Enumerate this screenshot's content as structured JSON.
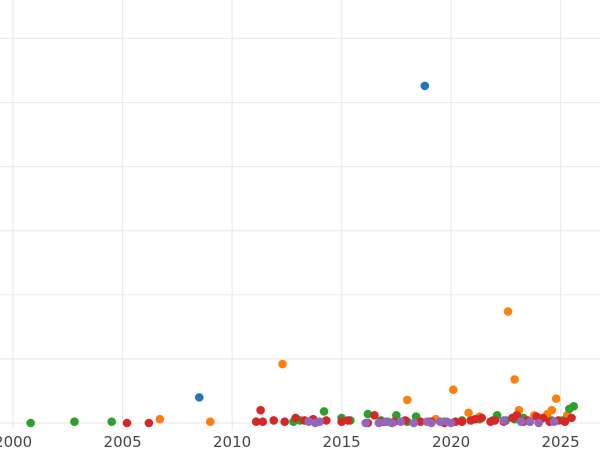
{
  "chart_data": {
    "type": "scatter",
    "title": "",
    "xlabel": "",
    "ylabel": "",
    "xlim": [
      1999.4,
      2026.8
    ],
    "ylim": [
      0,
      330
    ],
    "x_ticks": [
      2000,
      2005,
      2010,
      2015,
      2020,
      2025
    ],
    "x_tick_labels": [
      "2000",
      "2005",
      "2010",
      "2015",
      "2020",
      "2025"
    ],
    "y_gridlines": [
      0,
      50,
      100,
      150,
      200,
      250,
      300
    ],
    "grid": true,
    "legend": "none",
    "series": [
      {
        "color": "#1f77b4",
        "points": [
          [
            2008.5,
            20
          ],
          [
            2018.8,
            263
          ]
        ]
      },
      {
        "color": "#ff7f0e",
        "points": [
          [
            2006.7,
            3
          ],
          [
            2009.0,
            1
          ],
          [
            2012.3,
            46
          ],
          [
            2016.9,
            1
          ],
          [
            2018.0,
            18
          ],
          [
            2019.3,
            3
          ],
          [
            2020.1,
            26
          ],
          [
            2020.8,
            8
          ],
          [
            2021.3,
            5
          ],
          [
            2022.6,
            87
          ],
          [
            2022.9,
            34
          ],
          [
            2023.1,
            10
          ],
          [
            2023.8,
            6
          ],
          [
            2024.4,
            7
          ],
          [
            2024.6,
            10
          ],
          [
            2024.8,
            19
          ],
          [
            2025.3,
            6
          ]
        ]
      },
      {
        "color": "#2ca02c",
        "points": [
          [
            2000.8,
            0
          ],
          [
            2002.8,
            1
          ],
          [
            2004.5,
            1
          ],
          [
            2012.8,
            1
          ],
          [
            2013.1,
            2
          ],
          [
            2014.2,
            9
          ],
          [
            2015.0,
            4
          ],
          [
            2015.4,
            2
          ],
          [
            2016.2,
            7
          ],
          [
            2016.8,
            2
          ],
          [
            2017.1,
            1
          ],
          [
            2017.5,
            6
          ],
          [
            2018.0,
            1
          ],
          [
            2018.4,
            5
          ],
          [
            2019.0,
            1
          ],
          [
            2019.7,
            1
          ],
          [
            2020.5,
            2
          ],
          [
            2021.3,
            3
          ],
          [
            2021.9,
            2
          ],
          [
            2022.1,
            6
          ],
          [
            2022.5,
            2
          ],
          [
            2022.9,
            3
          ],
          [
            2023.3,
            4
          ],
          [
            2023.6,
            1
          ],
          [
            2024.1,
            3
          ],
          [
            2024.6,
            2
          ],
          [
            2025.1,
            2
          ],
          [
            2025.4,
            11
          ],
          [
            2025.6,
            13
          ]
        ]
      },
      {
        "color": "#d62728",
        "points": [
          [
            2005.2,
            0
          ],
          [
            2006.2,
            0
          ],
          [
            2011.1,
            1
          ],
          [
            2011.3,
            10
          ],
          [
            2011.4,
            1
          ],
          [
            2011.9,
            2
          ],
          [
            2012.4,
            1
          ],
          [
            2012.9,
            4
          ],
          [
            2013.3,
            2
          ],
          [
            2013.7,
            3
          ],
          [
            2014.3,
            2
          ],
          [
            2015.0,
            1
          ],
          [
            2015.3,
            2
          ],
          [
            2016.2,
            0
          ],
          [
            2016.5,
            6
          ],
          [
            2016.9,
            1
          ],
          [
            2017.4,
            1
          ],
          [
            2017.9,
            2
          ],
          [
            2018.6,
            1
          ],
          [
            2019.1,
            1
          ],
          [
            2019.7,
            0
          ],
          [
            2020.2,
            1
          ],
          [
            2020.5,
            1
          ],
          [
            2020.9,
            2
          ],
          [
            2021.1,
            3
          ],
          [
            2021.4,
            4
          ],
          [
            2021.8,
            1
          ],
          [
            2022.0,
            2
          ],
          [
            2022.4,
            1
          ],
          [
            2022.8,
            4
          ],
          [
            2023.0,
            6
          ],
          [
            2023.3,
            1
          ],
          [
            2023.5,
            2
          ],
          [
            2023.9,
            5
          ],
          [
            2024.2,
            4
          ],
          [
            2024.5,
            1
          ],
          [
            2024.9,
            2
          ],
          [
            2025.2,
            1
          ],
          [
            2025.5,
            4
          ]
        ]
      },
      {
        "color": "#9467bd",
        "points": [
          [
            2013.5,
            1
          ],
          [
            2013.8,
            0
          ],
          [
            2014.0,
            1
          ],
          [
            2016.1,
            0
          ],
          [
            2016.7,
            0
          ],
          [
            2017.0,
            1
          ],
          [
            2017.3,
            0
          ],
          [
            2017.7,
            1
          ],
          [
            2018.3,
            0
          ],
          [
            2018.9,
            1
          ],
          [
            2019.1,
            0
          ],
          [
            2019.5,
            1
          ],
          [
            2019.8,
            1
          ],
          [
            2020.0,
            0
          ],
          [
            2022.4,
            2
          ],
          [
            2023.2,
            1
          ],
          [
            2023.6,
            1
          ],
          [
            2024.0,
            0
          ],
          [
            2024.7,
            1
          ]
        ]
      }
    ]
  }
}
